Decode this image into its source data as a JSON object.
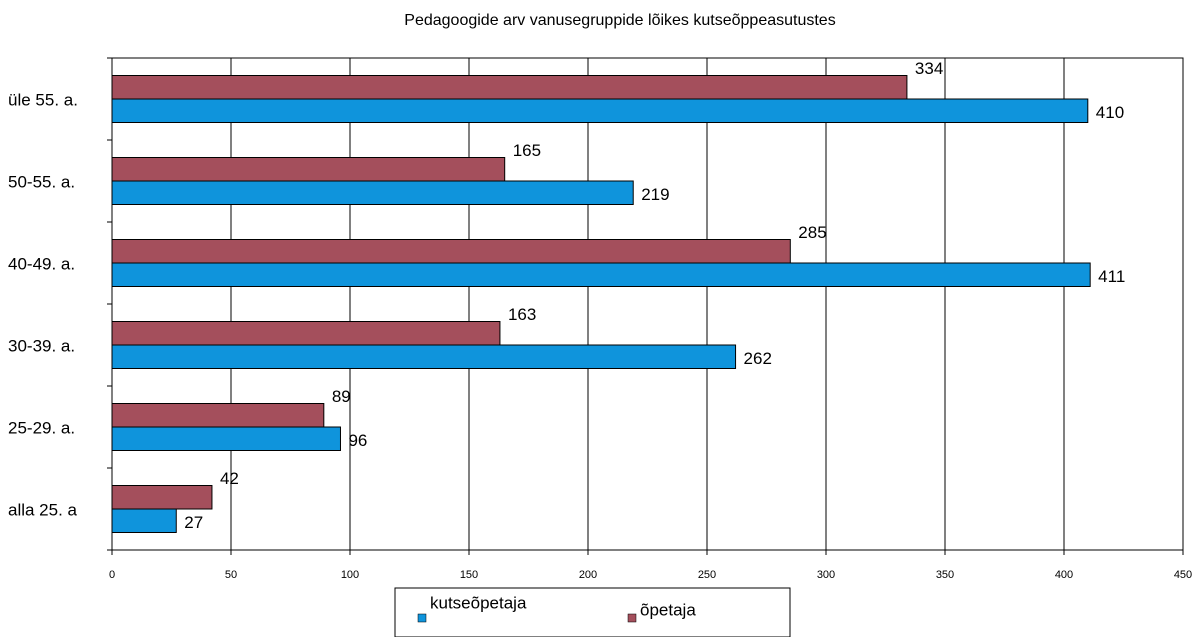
{
  "chart_data": {
    "type": "hbar",
    "title": "Pedagoogide arv vanusegruppide lõikes kutseõppeasutustes",
    "categories": [
      "üle 55. a.",
      "50-55. a.",
      "40-49. a.",
      "30-39. a.",
      "25-29. a.",
      "alla 25. a"
    ],
    "series": [
      {
        "name": "õpetaja",
        "color": "#a44f5c",
        "values": [
          334,
          165,
          285,
          163,
          89,
          42
        ]
      },
      {
        "name": "kutseõpetaja",
        "color": "#0f94dc",
        "values": [
          410,
          219,
          411,
          262,
          96,
          27
        ]
      }
    ],
    "xlim": [
      0,
      450
    ],
    "xticks": [
      0,
      50,
      100,
      150,
      200,
      250,
      300,
      350,
      400,
      450
    ],
    "grid": true,
    "legend": "bottom"
  }
}
